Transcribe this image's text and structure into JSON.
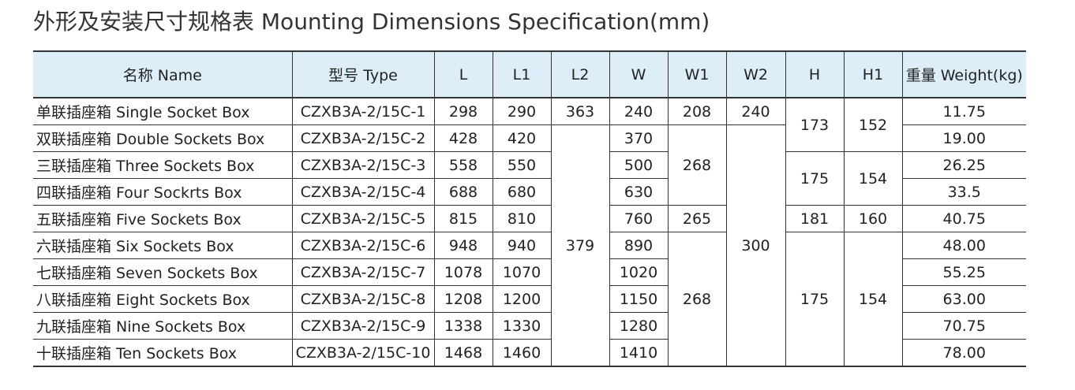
{
  "title": "外形及安装尺寸规格表 Mounting Dimensions Specification(mm)",
  "table": {
    "header": [
      "名称 Name",
      "型号 Type",
      "L",
      "L1",
      "L2",
      "W",
      "W1",
      "W2",
      "H",
      "H1",
      "重量 Weight(kg)"
    ],
    "rows": [
      [
        "单联插座箱 Single Socket Box",
        "CZXB3A-2/15C-1",
        298,
        290,
        363,
        240,
        208,
        240,
        173,
        152,
        "11.75"
      ],
      [
        "双联插座箱 Double Sockets Box",
        "CZXB3A-2/15C-2",
        428,
        420,
        379,
        370,
        268,
        300,
        "19.00"
      ],
      [
        "三联插座箱 Three Sockets Box",
        "CZXB3A-2/15C-3",
        558,
        550,
        500,
        175,
        154,
        "26.25"
      ],
      [
        "四联插座箱 Four Sockrts Box",
        "CZXB3A-2/15C-4",
        688,
        680,
        630,
        "33.5"
      ],
      [
        "五联插座箱 Five Sockets Box",
        "CZXB3A-2/15C-5",
        815,
        810,
        760,
        265,
        181,
        160,
        "40.75"
      ],
      [
        "六联插座箱 Six Sockets Box",
        "CZXB3A-2/15C-6",
        948,
        940,
        890,
        268,
        175,
        154,
        "48.00"
      ],
      [
        "七联插座箱 Seven Sockets Box",
        "CZXB3A-2/15C-7",
        1078,
        1070,
        1020,
        "55.25"
      ],
      [
        "八联插座箱 Eight Sockets Box",
        "CZXB3A-2/15C-8",
        1208,
        1200,
        1150,
        "63.00"
      ],
      [
        "九联插座箱 Nine Sockets Box",
        "CZXB3A-2/15C-9",
        1338,
        1330,
        1280,
        "70.75"
      ],
      [
        "十联插座箱 Ten Sockets Box",
        "CZXB3A-2/15C-10",
        1468,
        1460,
        1410,
        "78.00"
      ]
    ]
  }
}
